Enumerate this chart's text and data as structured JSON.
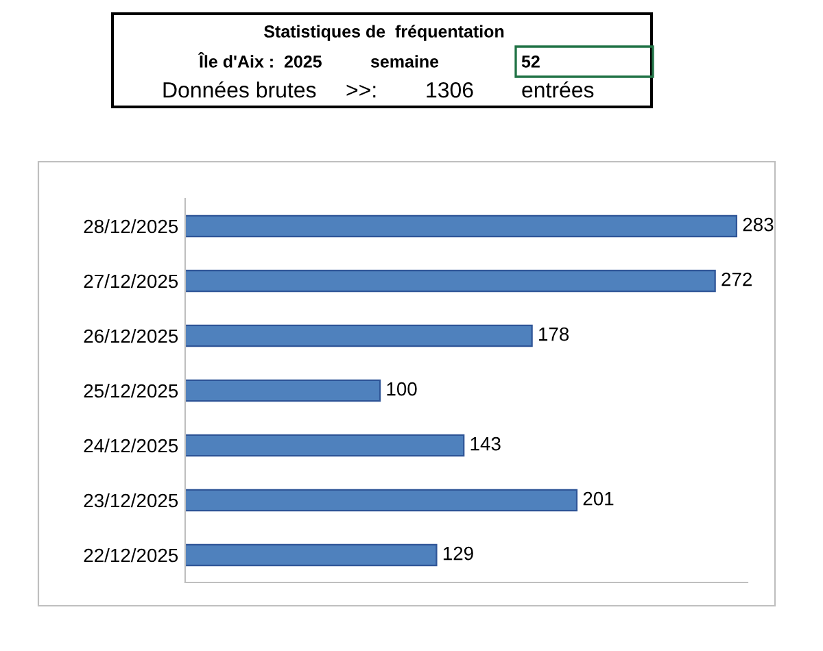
{
  "chart_data": {
    "type": "bar",
    "orientation": "horizontal",
    "title": "Statistiques de  fréquentation",
    "subtitle": "Île d'Aix :  2025",
    "annotations": [
      "semaine",
      "52",
      "Données brutes",
      ">>:",
      "1306",
      "entrées"
    ],
    "categories": [
      "28/12/2025",
      "27/12/2025",
      "26/12/2025",
      "25/12/2025",
      "24/12/2025",
      "23/12/2025",
      "22/12/2025"
    ],
    "values": [
      283,
      272,
      178,
      100,
      143,
      201,
      129
    ],
    "color": "#4f81bd",
    "data_labels": true,
    "grid": false,
    "legend": false,
    "tick_labels": "y"
  }
}
